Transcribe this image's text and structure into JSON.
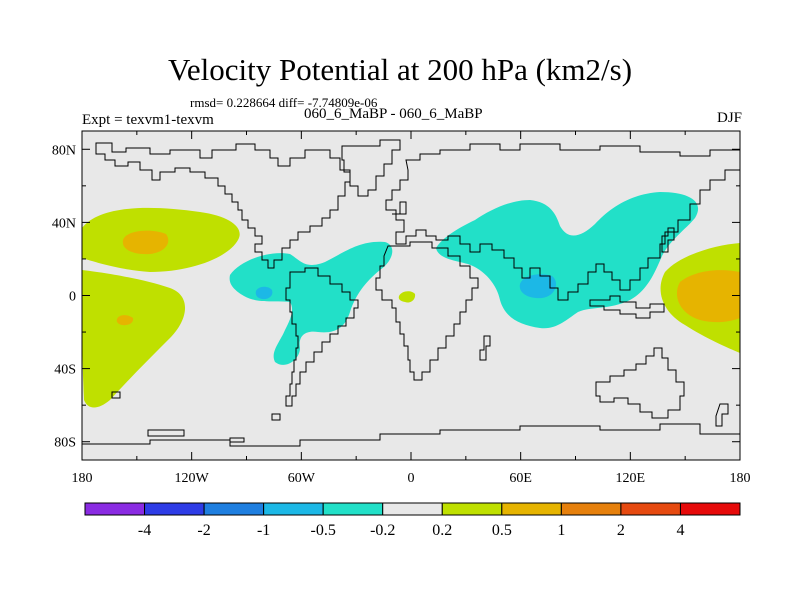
{
  "title": "Velocity Potential at 200 hPa (km2/s)",
  "stats": "rmsd= 0.228664 diff= -7.74809e-06",
  "left_label": "Expt = texvm1-texvm",
  "center_label": "060_6_MaBP - 060_6_MaBP",
  "right_label": "DJF",
  "map": {
    "projection": "cylindrical-equidistant",
    "lon_range": [
      -180,
      180
    ],
    "lat_range": [
      -90,
      90
    ],
    "background_color": "#e8e8e8",
    "coastline_color": "#000000"
  },
  "y_ticks": [
    {
      "lat": 80,
      "label": "80N"
    },
    {
      "lat": 40,
      "label": "40N"
    },
    {
      "lat": 0,
      "label": "0"
    },
    {
      "lat": -40,
      "label": "40S"
    },
    {
      "lat": -80,
      "label": "80S"
    }
  ],
  "x_ticks": [
    {
      "lon": -180,
      "label": "180"
    },
    {
      "lon": -120,
      "label": "120W"
    },
    {
      "lon": -60,
      "label": "60W"
    },
    {
      "lon": 0,
      "label": "0"
    },
    {
      "lon": 60,
      "label": "60E"
    },
    {
      "lon": 120,
      "label": "120E"
    },
    {
      "lon": 180,
      "label": "180"
    }
  ],
  "colorbar": {
    "colors": [
      "#8a2be2",
      "#2e3ce6",
      "#1f7fe0",
      "#1cb8e6",
      "#22e0c8",
      "#e8e8e8",
      "#bfe000",
      "#e6b400",
      "#e6800c",
      "#e64a10",
      "#e60a0a"
    ],
    "labels": [
      "-4",
      "-2",
      "-1",
      "-0.5",
      "-0.2",
      "0.2",
      "0.5",
      "1",
      "2",
      "4"
    ]
  }
}
